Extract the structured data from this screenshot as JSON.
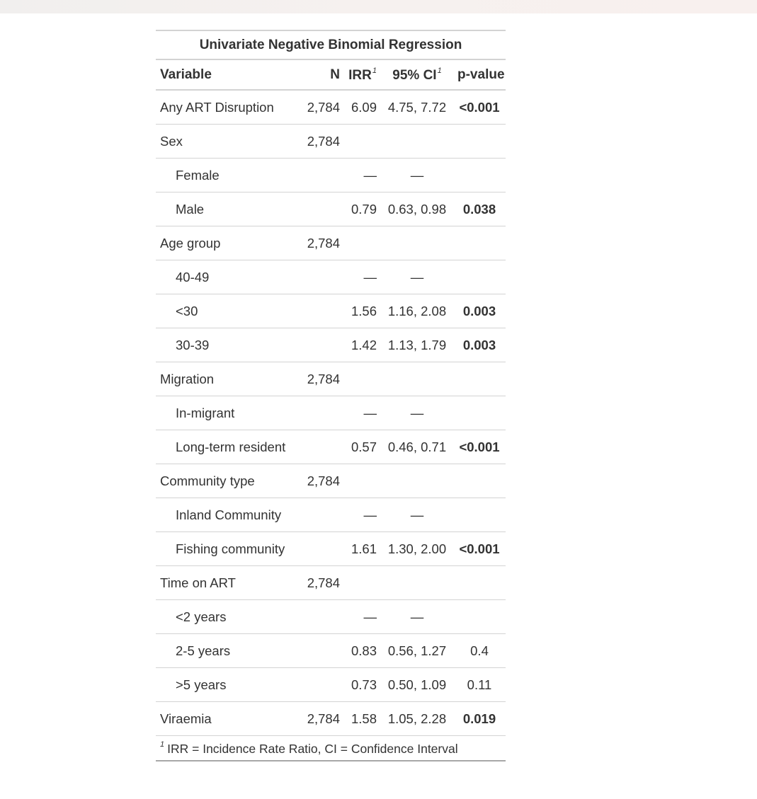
{
  "table": {
    "title": "Univariate Negative Binomial Regression",
    "headers": {
      "variable": "Variable",
      "n": "N",
      "irr": "IRR",
      "irr_fn": "1",
      "ci": "95% CI",
      "ci_fn": "1",
      "p": "p-value"
    },
    "rows": [
      {
        "label": "Any ART Disruption",
        "n": "2,784",
        "irr": "6.09",
        "ci": "4.75, 7.72",
        "p": "<0.001"
      },
      {
        "label": "Sex",
        "n": "2,784",
        "irr": "",
        "ci": "",
        "p": ""
      },
      {
        "label": "Female",
        "n": "",
        "irr": "—",
        "ci": "—",
        "p": ""
      },
      {
        "label": "Male",
        "n": "",
        "irr": "0.79",
        "ci": "0.63, 0.98",
        "p": "0.038"
      },
      {
        "label": "Age group",
        "n": "2,784",
        "irr": "",
        "ci": "",
        "p": ""
      },
      {
        "label": "40-49",
        "n": "",
        "irr": "—",
        "ci": "—",
        "p": ""
      },
      {
        "label": "<30",
        "n": "",
        "irr": "1.56",
        "ci": "1.16, 2.08",
        "p": "0.003"
      },
      {
        "label": "30-39",
        "n": "",
        "irr": "1.42",
        "ci": "1.13, 1.79",
        "p": "0.003"
      },
      {
        "label": "Migration",
        "n": "2,784",
        "irr": "",
        "ci": "",
        "p": ""
      },
      {
        "label": "In-migrant",
        "n": "",
        "irr": "—",
        "ci": "—",
        "p": ""
      },
      {
        "label": "Long-term resident",
        "n": "",
        "irr": "0.57",
        "ci": "0.46, 0.71",
        "p": "<0.001"
      },
      {
        "label": "Community type",
        "n": "2,784",
        "irr": "",
        "ci": "",
        "p": ""
      },
      {
        "label": "Inland Community",
        "n": "",
        "irr": "—",
        "ci": "—",
        "p": ""
      },
      {
        "label": "Fishing community",
        "n": "",
        "irr": "1.61",
        "ci": "1.30, 2.00",
        "p": "<0.001"
      },
      {
        "label": "Time on ART",
        "n": "2,784",
        "irr": "",
        "ci": "",
        "p": ""
      },
      {
        "label": "<2 years",
        "n": "",
        "irr": "—",
        "ci": "—",
        "p": ""
      },
      {
        "label": "2-5 years",
        "n": "",
        "irr": "0.83",
        "ci": "0.56, 1.27",
        "p": "0.4"
      },
      {
        "label": ">5 years",
        "n": "",
        "irr": "0.73",
        "ci": "0.50, 1.09",
        "p": "0.11"
      },
      {
        "label": "Viraemia",
        "n": "2,784",
        "irr": "1.58",
        "ci": "1.05, 2.28",
        "p": "0.019"
      }
    ],
    "footnote_mark": "1",
    "footnote": "IRR = Incidence Rate Ratio, CI = Confidence Interval"
  }
}
